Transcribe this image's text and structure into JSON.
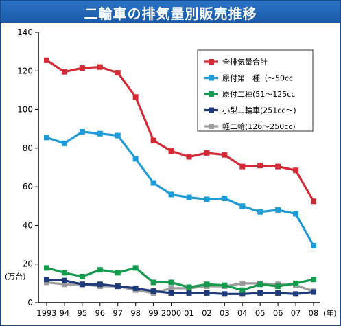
{
  "chart_data": {
    "type": "line",
    "title": "二輪車の排気量別販売推移",
    "x": [
      "1993",
      "94",
      "95",
      "96",
      "97",
      "98",
      "99",
      "2000",
      "01",
      "02",
      "03",
      "04",
      "05",
      "06",
      "07",
      "08"
    ],
    "x_unit_label": "(年)",
    "ylabel": "(万台)",
    "ylim": [
      0,
      140
    ],
    "yticks": [
      0,
      20,
      40,
      60,
      80,
      100,
      120,
      140
    ],
    "grid": false,
    "legend_position": "top-right",
    "series": [
      {
        "name": "全排気量合計",
        "color": "#d42a36",
        "values": [
          125.5,
          119.5,
          121.5,
          122,
          119,
          106.5,
          84,
          78.5,
          75.5,
          77.5,
          76.5,
          70.5,
          71,
          70.5,
          68.5,
          52.5
        ]
      },
      {
        "name": "原付第一種（〜50cc",
        "color": "#1e9bd7",
        "values": [
          85.5,
          82.5,
          88.5,
          87.5,
          86.5,
          74.5,
          62,
          56,
          54.5,
          53.5,
          54,
          50,
          47,
          48,
          46,
          29.5
        ]
      },
      {
        "name": "原付二種(51〜125cc",
        "color": "#169a4e",
        "values": [
          18,
          15.5,
          13.5,
          17,
          15.5,
          18,
          10.5,
          10.5,
          8,
          9.5,
          9,
          6.5,
          9.5,
          8.5,
          10,
          12
        ]
      },
      {
        "name": "小型二輪車(251cc〜)",
        "color": "#1f3a7a",
        "values": [
          12,
          11.5,
          9.5,
          9.5,
          8.5,
          7.5,
          6,
          5,
          5,
          5,
          4.5,
          4.5,
          5,
          5,
          4.5,
          5.5
        ]
      },
      {
        "name": "軽二輪(126〜250cc)",
        "color": "#9d9d9d",
        "values": [
          10.5,
          9.5,
          9.5,
          8.5,
          8.5,
          6.5,
          5,
          7.5,
          7.5,
          8.5,
          8.5,
          10,
          10,
          9.5,
          9,
          6
        ]
      }
    ]
  },
  "colors": {
    "title_bar": "#1b5aa8",
    "axis": "#000000"
  }
}
